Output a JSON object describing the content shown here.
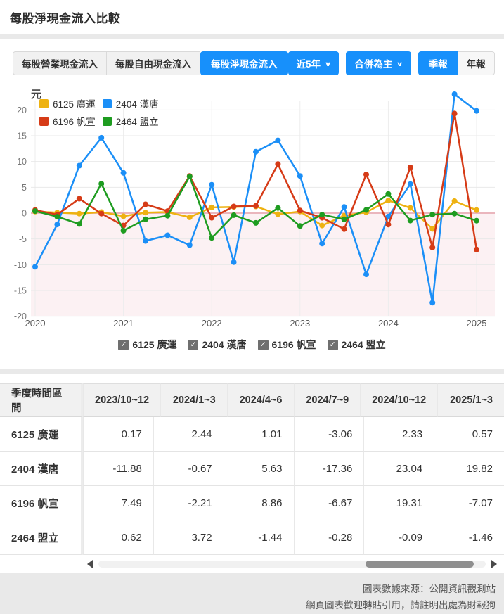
{
  "header": {
    "title": "每股淨現金流入比較"
  },
  "toolbar": {
    "metric_tabs": [
      {
        "label": "每股營業現金流入",
        "active": false
      },
      {
        "label": "每股自由現金流入",
        "active": false
      },
      {
        "label": "每股淨現金流入",
        "active": true
      }
    ],
    "range_dropdown_label": "近5年",
    "consolidation_dropdown_label": "合併為主",
    "period_tabs": [
      {
        "label": "季報",
        "active": true
      },
      {
        "label": "年報",
        "active": false
      }
    ]
  },
  "icons": {
    "chevron_down": "∨",
    "check": "✓",
    "scroll_left": "left-triangle",
    "scroll_right": "right-triangle"
  },
  "chart_data": {
    "type": "line",
    "title": "每股淨現金流入比較",
    "unit_label": "元",
    "x": [
      "2020Q1",
      "2020Q2",
      "2020Q3",
      "2020Q4",
      "2021Q1",
      "2021Q2",
      "2021Q3",
      "2021Q4",
      "2022Q1",
      "2022Q2",
      "2022Q3",
      "2022Q4",
      "2023Q1",
      "2023Q2",
      "2023Q3",
      "2023Q4",
      "2024Q1",
      "2024Q2",
      "2024Q3",
      "2024Q4",
      "2025Q1"
    ],
    "x_axis_year_labels": [
      "2020",
      "2021",
      "2022",
      "2023",
      "2024",
      "2025"
    ],
    "ylim": [
      -20,
      20
    ],
    "ytick_step": 5,
    "grid": true,
    "legend_position": "top-left",
    "zero_line_color": "#eab6bd",
    "negative_region_tint": "#fcf1f3",
    "series": [
      {
        "name": "6125 廣運",
        "color": "#eeb211",
        "visible": true,
        "values": [
          0.3,
          0.1,
          -0.1,
          0.2,
          -0.6,
          0.1,
          0.2,
          -0.8,
          1.1,
          1.2,
          1.3,
          -0.2,
          0.3,
          -2.4,
          -0.5,
          0.17,
          2.44,
          1.01,
          -3.06,
          2.33,
          0.57
        ]
      },
      {
        "name": "2404 漢唐",
        "color": "#1b8ff7",
        "visible": true,
        "values": [
          -10.4,
          -2.2,
          9.2,
          14.6,
          7.8,
          -5.4,
          -4.3,
          -6.2,
          5.5,
          -9.5,
          11.9,
          14.1,
          7.2,
          -5.9,
          1.2,
          -11.88,
          -0.67,
          5.63,
          -17.36,
          23.04,
          19.82
        ]
      },
      {
        "name": "6196 帆宣",
        "color": "#d63b17",
        "visible": true,
        "values": [
          0.6,
          -0.3,
          2.8,
          -0.1,
          -2.4,
          1.7,
          0.4,
          7.2,
          -0.9,
          1.3,
          1.4,
          9.5,
          0.5,
          -0.9,
          -3.1,
          7.49,
          -2.21,
          8.86,
          -6.67,
          19.31,
          -7.07
        ]
      },
      {
        "name": "2464 盟立",
        "color": "#1e9c20",
        "visible": true,
        "values": [
          0.4,
          -0.7,
          -2.1,
          5.7,
          -3.4,
          -1.2,
          -0.5,
          7.1,
          -4.8,
          -0.4,
          -1.9,
          1.0,
          -2.5,
          -0.3,
          -1.2,
          0.62,
          3.72,
          -1.44,
          -0.28,
          -0.09,
          -1.46
        ]
      }
    ]
  },
  "table": {
    "corner_header": "季度時間區間",
    "columns": [
      "2023/10~12",
      "2024/1~3",
      "2024/4~6",
      "2024/7~9",
      "2024/10~12",
      "2025/1~3"
    ],
    "rows": [
      {
        "label": "6125 廣運",
        "values": [
          "0.17",
          "2.44",
          "1.01",
          "-3.06",
          "2.33",
          "0.57"
        ]
      },
      {
        "label": "2404 漢唐",
        "values": [
          "-11.88",
          "-0.67",
          "5.63",
          "-17.36",
          "23.04",
          "19.82"
        ]
      },
      {
        "label": "6196 帆宣",
        "values": [
          "7.49",
          "-2.21",
          "8.86",
          "-6.67",
          "19.31",
          "-7.07"
        ]
      },
      {
        "label": "2464 盟立",
        "values": [
          "0.62",
          "3.72",
          "-1.44",
          "-0.28",
          "-0.09",
          "-1.46"
        ]
      }
    ]
  },
  "footer": {
    "source_line": "圖表數據來源：公開資訊觀測站",
    "share_line": "網頁圖表歡迎轉貼引用，請註明出處為財報狗"
  },
  "colors": {
    "accent_blue": "#1790fb",
    "inactive_button_bg": "#f1f1f1",
    "page_background": "#e9e9e9"
  }
}
